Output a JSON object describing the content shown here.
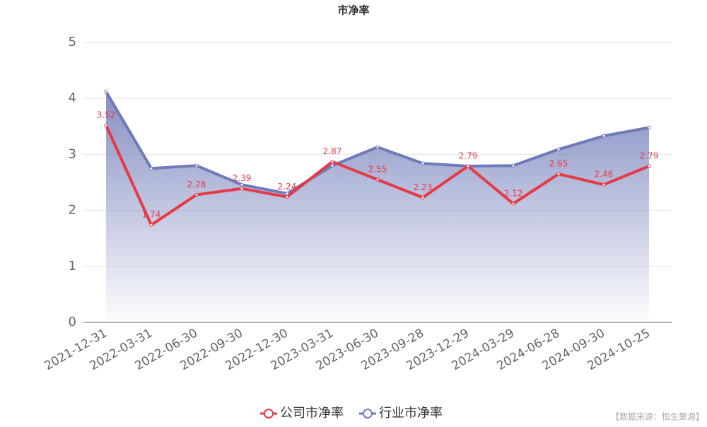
{
  "chart_data": {
    "type": "line",
    "title": "市净率",
    "categories": [
      "2021-12-31",
      "2022-03-31",
      "2022-06-30",
      "2022-09-30",
      "2022-12-30",
      "2023-03-31",
      "2023-06-30",
      "2023-09-28",
      "2023-12-29",
      "2024-03-29",
      "2024-06-28",
      "2024-09-30",
      "2024-10-25"
    ],
    "series": [
      {
        "name": "公司市净率",
        "color": "#e63946",
        "values": [
          3.52,
          1.74,
          2.28,
          2.39,
          2.24,
          2.87,
          2.55,
          2.23,
          2.79,
          2.12,
          2.65,
          2.46,
          2.79
        ],
        "data_labels": true
      },
      {
        "name": "行业市净率",
        "color": "#6f7ab8",
        "values": [
          4.12,
          2.75,
          2.8,
          2.46,
          2.3,
          2.8,
          3.13,
          2.84,
          2.79,
          2.8,
          3.09,
          3.33,
          3.48
        ],
        "area": true
      }
    ],
    "ylim": [
      0,
      5
    ],
    "yticks": [
      0,
      1,
      2,
      3,
      4,
      5
    ],
    "grid": true,
    "legend": "bottom",
    "source": "【数据来源：恒生聚源】"
  }
}
